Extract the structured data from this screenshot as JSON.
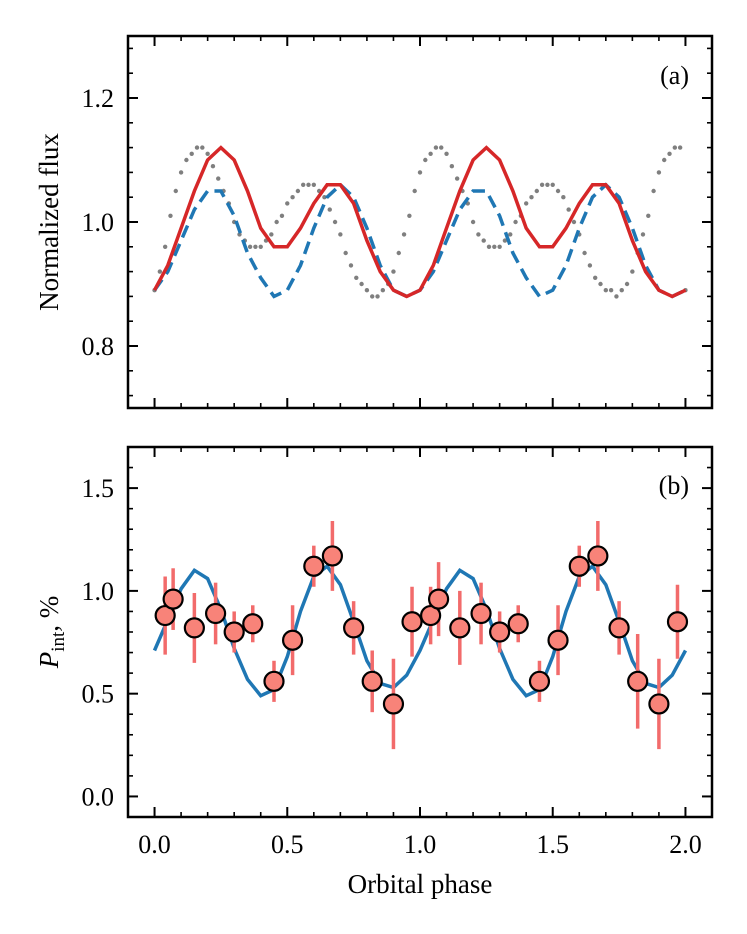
{
  "chart_data": [
    {
      "type": "scatter",
      "panel_label": "(a)",
      "xlabel": "",
      "ylabel": "Normalized flux",
      "xlim": [
        -0.1,
        2.1
      ],
      "ylim": [
        0.7,
        1.3
      ],
      "xticks": [
        0.0,
        0.5,
        1.0,
        1.5,
        2.0
      ],
      "yticks": [
        0.8,
        1.0,
        1.2
      ],
      "ytick_labels": [
        "0.8",
        "1.0",
        "1.2"
      ],
      "colors": {
        "points": "#7f7f7f",
        "model_red": "#d62728",
        "model_dashed": "#1f77b4"
      },
      "series": [
        {
          "name": "observed flux",
          "style": "grey dots",
          "x": [
            0.0,
            0.02,
            0.04,
            0.06,
            0.08,
            0.1,
            0.12,
            0.14,
            0.16,
            0.18,
            0.2,
            0.22,
            0.24,
            0.26,
            0.28,
            0.3,
            0.32,
            0.34,
            0.36,
            0.38,
            0.4,
            0.42,
            0.44,
            0.46,
            0.48,
            0.5,
            0.52,
            0.54,
            0.56,
            0.58,
            0.6,
            0.62,
            0.64,
            0.66,
            0.68,
            0.7,
            0.72,
            0.74,
            0.76,
            0.78,
            0.8,
            0.82,
            0.84,
            0.86,
            0.88,
            0.9,
            0.92,
            0.94,
            0.96,
            0.98,
            1.0,
            1.02,
            1.04,
            1.06,
            1.08,
            1.1,
            1.12,
            1.14,
            1.16,
            1.18,
            1.2,
            1.22,
            1.24,
            1.26,
            1.28,
            1.3,
            1.32,
            1.34,
            1.36,
            1.38,
            1.4,
            1.42,
            1.44,
            1.46,
            1.48,
            1.5,
            1.52,
            1.54,
            1.56,
            1.58,
            1.6,
            1.62,
            1.64,
            1.66,
            1.68,
            1.7,
            1.72,
            1.74,
            1.76,
            1.78,
            1.8,
            1.82,
            1.84,
            1.86,
            1.88,
            1.9,
            1.92,
            1.94,
            1.96,
            1.98,
            2.0
          ],
          "y": [
            0.89,
            0.92,
            0.96,
            1.01,
            1.05,
            1.08,
            1.1,
            1.11,
            1.12,
            1.12,
            1.11,
            1.09,
            1.07,
            1.05,
            1.03,
            1.0,
            0.98,
            0.97,
            0.96,
            0.96,
            0.96,
            0.97,
            0.98,
            1.0,
            1.01,
            1.03,
            1.04,
            1.05,
            1.06,
            1.06,
            1.06,
            1.05,
            1.04,
            1.02,
            1.0,
            0.98,
            0.95,
            0.93,
            0.91,
            0.9,
            0.89,
            0.88,
            0.88,
            0.89,
            0.9,
            0.92,
            0.95,
            0.98,
            1.01,
            1.05,
            1.08,
            1.1,
            1.11,
            1.12,
            1.12,
            1.11,
            1.09,
            1.07,
            1.05,
            1.03,
            1.0,
            0.98,
            0.97,
            0.96,
            0.96,
            0.96,
            0.97,
            0.98,
            1.0,
            1.01,
            1.03,
            1.04,
            1.05,
            1.06,
            1.06,
            1.06,
            1.05,
            1.04,
            1.02,
            1.0,
            0.98,
            0.95,
            0.93,
            0.91,
            0.9,
            0.89,
            0.89,
            0.88,
            0.89,
            0.9,
            0.92,
            0.95,
            0.98,
            1.01,
            1.05,
            1.08,
            1.1,
            1.11,
            1.12,
            1.12,
            0.89
          ]
        },
        {
          "name": "model (red)",
          "style": "solid",
          "x": [
            0.0,
            0.05,
            0.1,
            0.15,
            0.2,
            0.25,
            0.3,
            0.35,
            0.4,
            0.45,
            0.5,
            0.55,
            0.6,
            0.65,
            0.7,
            0.75,
            0.8,
            0.85,
            0.9,
            0.95,
            1.0,
            1.05,
            1.1,
            1.15,
            1.2,
            1.25,
            1.3,
            1.35,
            1.4,
            1.45,
            1.5,
            1.55,
            1.6,
            1.65,
            1.7,
            1.75,
            1.8,
            1.85,
            1.9,
            1.95,
            2.0
          ],
          "y": [
            0.89,
            0.93,
            0.99,
            1.05,
            1.1,
            1.12,
            1.1,
            1.05,
            0.99,
            0.96,
            0.96,
            0.99,
            1.03,
            1.06,
            1.06,
            1.03,
            0.97,
            0.92,
            0.89,
            0.88,
            0.89,
            0.93,
            0.99,
            1.05,
            1.1,
            1.12,
            1.1,
            1.05,
            0.99,
            0.96,
            0.96,
            0.99,
            1.03,
            1.06,
            1.06,
            1.03,
            0.97,
            0.92,
            0.89,
            0.88,
            0.89
          ]
        },
        {
          "name": "model (blue dashed)",
          "style": "dashed",
          "x": [
            0.0,
            0.05,
            0.1,
            0.15,
            0.2,
            0.25,
            0.3,
            0.35,
            0.4,
            0.45,
            0.5,
            0.55,
            0.6,
            0.65,
            0.7,
            0.75,
            0.8,
            0.85,
            0.9,
            0.95,
            1.0,
            1.05,
            1.1,
            1.15,
            1.2,
            1.25,
            1.3,
            1.35,
            1.4,
            1.45,
            1.5,
            1.55,
            1.6,
            1.65,
            1.7,
            1.75,
            1.8,
            1.85,
            1.9,
            1.95,
            2.0
          ],
          "y": [
            0.89,
            0.92,
            0.97,
            1.02,
            1.05,
            1.05,
            1.01,
            0.95,
            0.91,
            0.88,
            0.89,
            0.93,
            0.99,
            1.04,
            1.06,
            1.04,
            0.99,
            0.93,
            0.89,
            0.88,
            0.89,
            0.92,
            0.97,
            1.02,
            1.05,
            1.05,
            1.01,
            0.95,
            0.91,
            0.88,
            0.89,
            0.93,
            0.99,
            1.04,
            1.06,
            1.04,
            0.99,
            0.93,
            0.89,
            0.88,
            0.89
          ]
        }
      ]
    },
    {
      "type": "scatter",
      "panel_label": "(b)",
      "xlabel": "Orbital phase",
      "ylabel_main": "P",
      "ylabel_sub": "int",
      "ylabel_tail": ", %",
      "xlim": [
        -0.1,
        2.1
      ],
      "ylim": [
        -0.1,
        1.7
      ],
      "xticks": [
        0.0,
        0.5,
        1.0,
        1.5,
        2.0
      ],
      "xtick_labels": [
        "0.0",
        "0.5",
        "1.0",
        "1.5",
        "2.0"
      ],
      "yticks": [
        0.0,
        0.5,
        1.0,
        1.5
      ],
      "ytick_labels": [
        "0.0",
        "0.5",
        "1.0",
        "1.5"
      ],
      "colors": {
        "marker_fill": "#f88379",
        "errorbar": "#f26b6b",
        "fit": "#1f77b4"
      },
      "series": [
        {
          "name": "measurements",
          "x": [
            0.04,
            0.07,
            0.15,
            0.23,
            0.3,
            0.37,
            0.45,
            0.52,
            0.6,
            0.67,
            0.75,
            0.82,
            0.9,
            0.97,
            1.04,
            1.07,
            1.15,
            1.23,
            1.3,
            1.37,
            1.45,
            1.52,
            1.6,
            1.67,
            1.75,
            1.82,
            1.9,
            1.97
          ],
          "y": [
            0.88,
            0.96,
            0.82,
            0.89,
            0.8,
            0.84,
            0.56,
            0.76,
            1.12,
            1.17,
            0.82,
            0.56,
            0.45,
            0.85,
            0.88,
            0.96,
            0.82,
            0.89,
            0.8,
            0.84,
            0.56,
            0.76,
            1.12,
            1.17,
            0.82,
            0.56,
            0.45,
            0.85
          ],
          "yerr": [
            0.19,
            0.15,
            0.17,
            0.15,
            0.1,
            0.09,
            0.1,
            0.17,
            0.1,
            0.17,
            0.13,
            0.15,
            0.22,
            0.17,
            0.14,
            0.18,
            0.18,
            0.15,
            0.1,
            0.09,
            0.1,
            0.17,
            0.1,
            0.17,
            0.13,
            0.23,
            0.22,
            0.18
          ]
        },
        {
          "name": "fit",
          "x": [
            0.0,
            0.05,
            0.1,
            0.15,
            0.2,
            0.25,
            0.3,
            0.35,
            0.4,
            0.45,
            0.5,
            0.55,
            0.6,
            0.65,
            0.7,
            0.75,
            0.8,
            0.85,
            0.9,
            0.95,
            1.0,
            1.05,
            1.1,
            1.15,
            1.2,
            1.25,
            1.3,
            1.35,
            1.4,
            1.45,
            1.5,
            1.55,
            1.6,
            1.65,
            1.7,
            1.75,
            1.8,
            1.85,
            1.9,
            1.95,
            2.0
          ],
          "y": [
            0.71,
            0.86,
            1.01,
            1.1,
            1.06,
            0.91,
            0.72,
            0.57,
            0.49,
            0.52,
            0.68,
            0.9,
            1.07,
            1.12,
            1.03,
            0.85,
            0.66,
            0.55,
            0.53,
            0.59,
            0.71,
            0.86,
            1.01,
            1.1,
            1.06,
            0.91,
            0.72,
            0.57,
            0.49,
            0.52,
            0.68,
            0.9,
            1.07,
            1.12,
            1.03,
            0.85,
            0.66,
            0.55,
            0.53,
            0.59,
            0.71
          ]
        }
      ]
    }
  ]
}
